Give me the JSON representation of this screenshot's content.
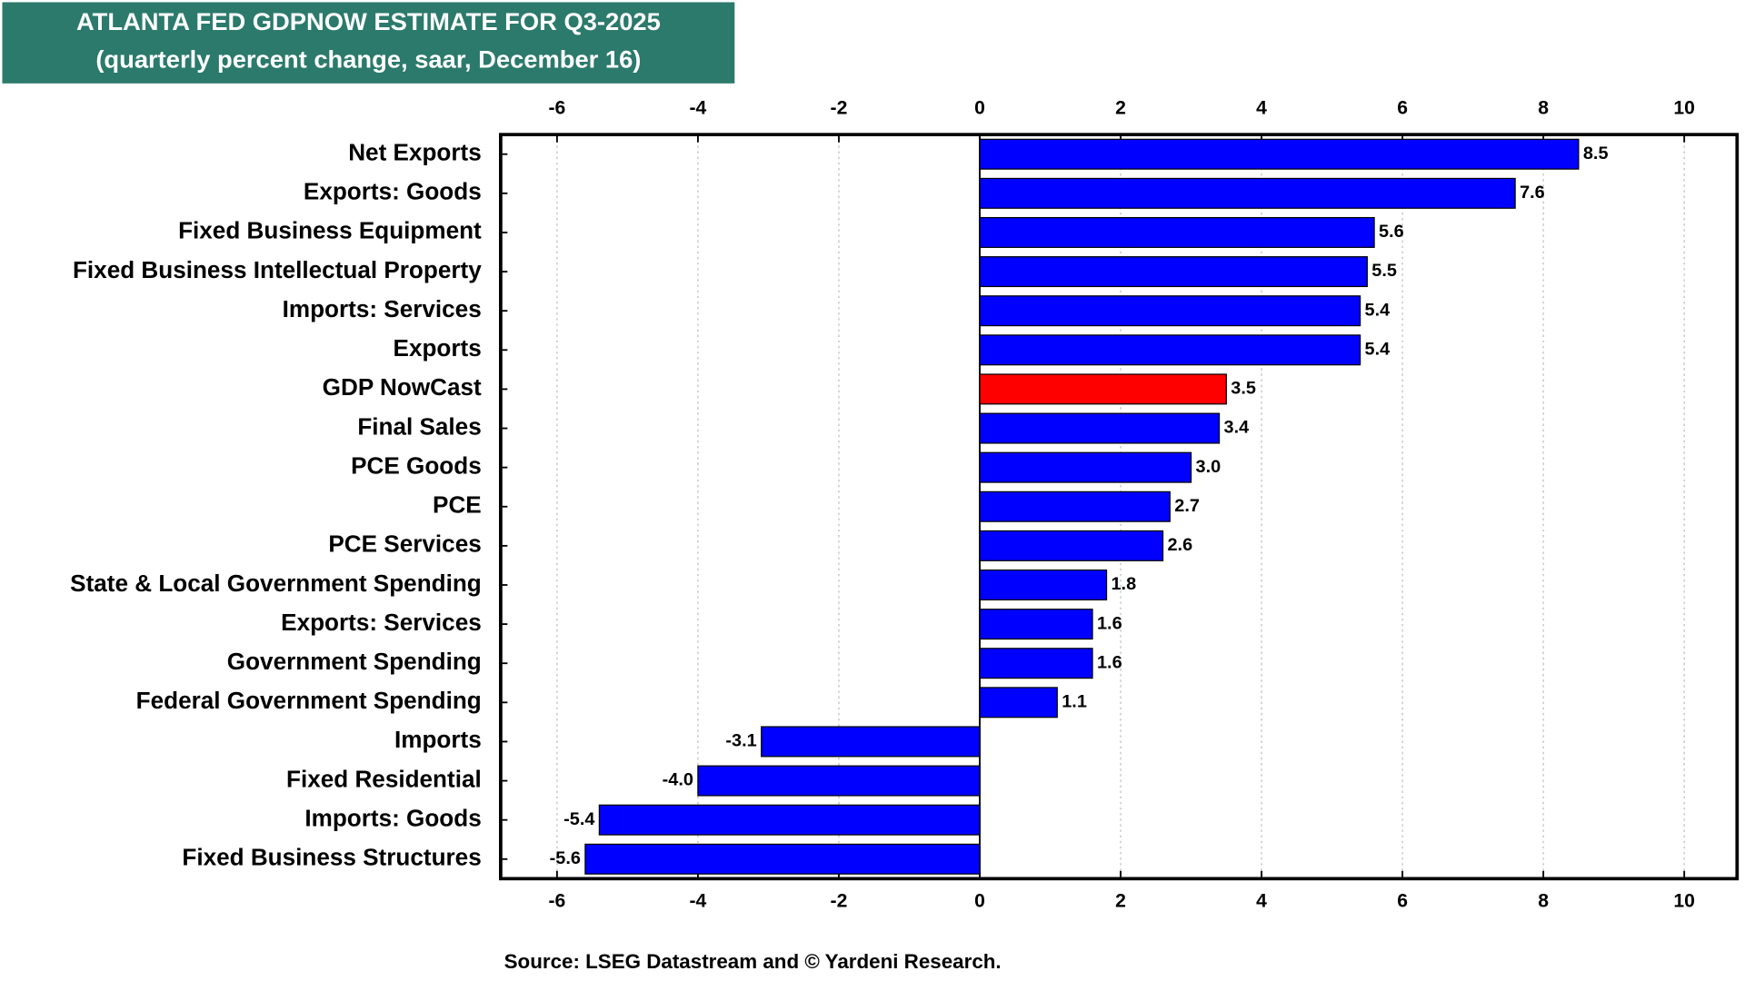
{
  "chart_data": {
    "type": "bar",
    "orientation": "horizontal",
    "title": "ATLANTA FED GDPNOW ESTIMATE FOR Q3-2025",
    "subtitle": "(quarterly percent change, saar, December 16)",
    "source": "Source: LSEG Datastream and © Yardeni Research.",
    "categories": [
      "Net Exports",
      "Exports: Goods",
      "Fixed Business Equipment",
      "Fixed Business Intellectual Property",
      "Imports: Services",
      "Exports",
      "GDP NowCast",
      "Final Sales",
      "PCE Goods",
      "PCE",
      "PCE Services",
      "State & Local Government Spending",
      "Exports: Services",
      "Government Spending",
      "Federal Government Spending",
      "Imports",
      "Fixed Residential",
      "Imports: Goods",
      "Fixed Business Structures"
    ],
    "values": [
      8.5,
      7.6,
      5.6,
      5.5,
      5.4,
      5.4,
      3.5,
      3.4,
      3.0,
      2.7,
      2.6,
      1.8,
      1.6,
      1.6,
      1.1,
      -3.1,
      -4.0,
      -5.4,
      -5.6
    ],
    "value_labels": [
      "8.5",
      "7.6",
      "5.6",
      "5.5",
      "5.4",
      "5.4",
      "3.5",
      "3.4",
      "3.0",
      "2.7",
      "2.6",
      "1.8",
      "1.6",
      "1.6",
      "1.1",
      "-3.1",
      "-4.0",
      "-5.4",
      "-5.6"
    ],
    "colors": [
      "#0000ff",
      "#0000ff",
      "#0000ff",
      "#0000ff",
      "#0000ff",
      "#0000ff",
      "#ff0000",
      "#0000ff",
      "#0000ff",
      "#0000ff",
      "#0000ff",
      "#0000ff",
      "#0000ff",
      "#0000ff",
      "#0000ff",
      "#0000ff",
      "#0000ff",
      "#0000ff",
      "#0000ff"
    ],
    "xlim": [
      -6.8,
      10.75
    ],
    "xticks": [
      -6,
      -4,
      -2,
      0,
      2,
      4,
      6,
      8,
      10
    ],
    "grid": true
  }
}
